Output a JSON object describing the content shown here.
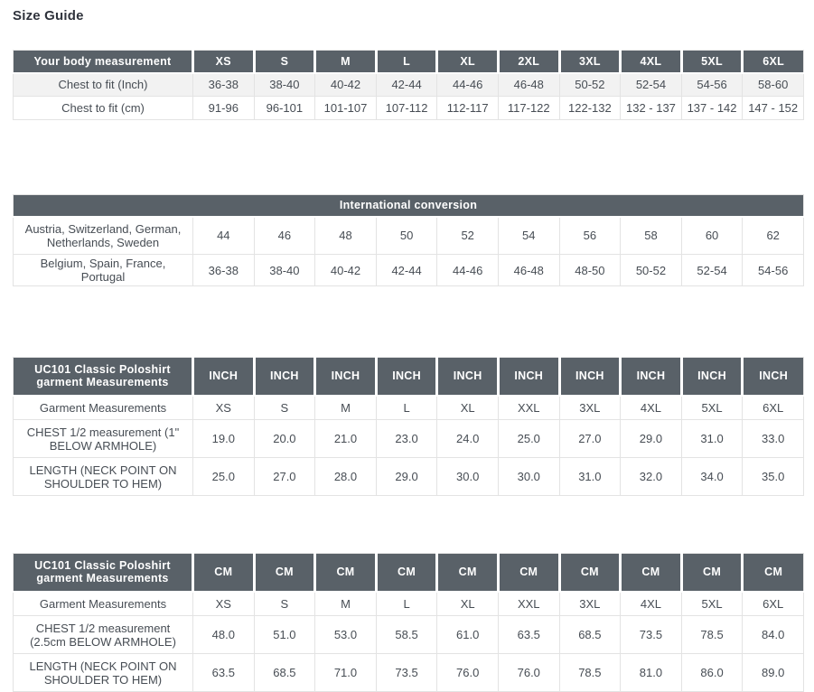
{
  "page": {
    "title": "Size Guide"
  },
  "colors": {
    "header_bg": "#596168",
    "header_text": "#ffffff",
    "body_text": "#474d54",
    "alt_row_bg": "#f2f2f2",
    "border": "#e3e3e3"
  },
  "tables": [
    {
      "id": "body-measurement",
      "columns": 11,
      "header": [
        "Your body measurement",
        "XS",
        "S",
        "M",
        "L",
        "XL",
        "2XL",
        "3XL",
        "4XL",
        "5XL",
        "6XL"
      ],
      "rows": [
        [
          "Chest to fit (Inch)",
          "36-38",
          "38-40",
          "40-42",
          "42-44",
          "44-46",
          "46-48",
          "50-52",
          "52-54",
          "54-56",
          "58-60"
        ],
        [
          "Chest to fit (cm)",
          "91-96",
          "96-101",
          "101-107",
          "107-112",
          "112-117",
          "117-122",
          "122-132",
          "132 - 137",
          "137 - 142",
          "147 - 152"
        ]
      ]
    },
    {
      "id": "international-conversion",
      "columns": 11,
      "header_span": "International conversion",
      "rows": [
        [
          "Austria, Switzerland, German, Netherlands, Sweden",
          "44",
          "46",
          "48",
          "50",
          "52",
          "54",
          "56",
          "58",
          "60",
          "62"
        ],
        [
          "Belgium, Spain, France, Portugal",
          "36-38",
          "38-40",
          "40-42",
          "42-44",
          "44-46",
          "46-48",
          "48-50",
          "50-52",
          "52-54",
          "54-56"
        ]
      ]
    },
    {
      "id": "garment-measurements-inch",
      "columns": 11,
      "header": [
        "UC101 Classic Poloshirt garment Measurements",
        "INCH",
        "INCH",
        "INCH",
        "INCH",
        "INCH",
        "INCH",
        "INCH",
        "INCH",
        "INCH",
        "INCH"
      ],
      "rows": [
        [
          "Garment Measurements",
          "XS",
          "S",
          "M",
          "L",
          "XL",
          "XXL",
          "3XL",
          "4XL",
          "5XL",
          "6XL"
        ],
        [
          "CHEST 1/2 measurement (1\" BELOW ARMHOLE)",
          "19.0",
          "20.0",
          "21.0",
          "23.0",
          "24.0",
          "25.0",
          "27.0",
          "29.0",
          "31.0",
          "33.0"
        ],
        [
          "LENGTH (NECK POINT ON SHOULDER TO HEM)",
          "25.0",
          "27.0",
          "28.0",
          "29.0",
          "30.0",
          "30.0",
          "31.0",
          "32.0",
          "34.0",
          "35.0"
        ]
      ]
    },
    {
      "id": "garment-measurements-cm",
      "columns": 11,
      "header": [
        "UC101 Classic Poloshirt garment Measurements",
        "CM",
        "CM",
        "CM",
        "CM",
        "CM",
        "CM",
        "CM",
        "CM",
        "CM",
        "CM"
      ],
      "rows": [
        [
          "Garment Measurements",
          "XS",
          "S",
          "M",
          "L",
          "XL",
          "XXL",
          "3XL",
          "4XL",
          "5XL",
          "6XL"
        ],
        [
          "CHEST 1/2 measurement (2.5cm BELOW ARMHOLE)",
          "48.0",
          "51.0",
          "53.0",
          "58.5",
          "61.0",
          "63.5",
          "68.5",
          "73.5",
          "78.5",
          "84.0"
        ],
        [
          "LENGTH (NECK POINT ON SHOULDER TO HEM)",
          "63.5",
          "68.5",
          "71.0",
          "73.5",
          "76.0",
          "76.0",
          "78.5",
          "81.0",
          "86.0",
          "89.0"
        ]
      ]
    }
  ]
}
